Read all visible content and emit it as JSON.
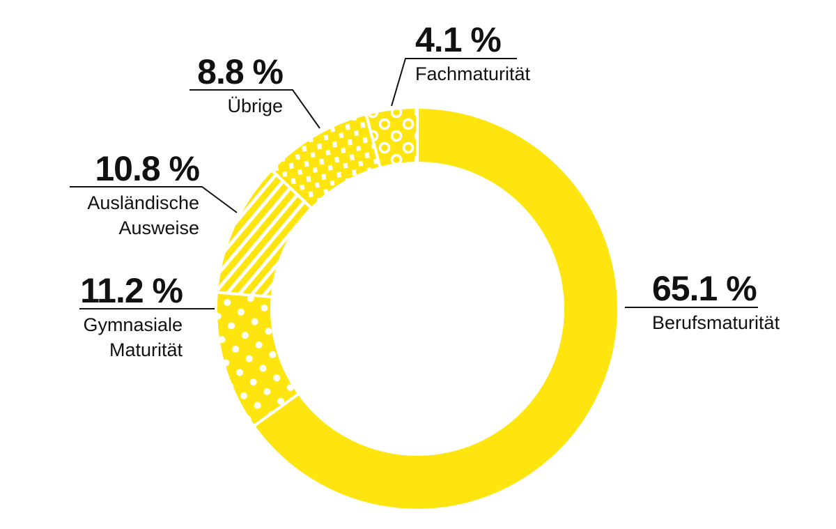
{
  "chart_data": {
    "type": "pie",
    "variant": "donut",
    "title": "",
    "start_angle_deg": 0,
    "direction": "clockwise",
    "colors": {
      "fill": "#FFE50F",
      "pattern": "#FFFFFF",
      "text": "#111111",
      "leader": "#111111"
    },
    "slices": [
      {
        "key": "berufsmaturitaet",
        "label": "Berufsmaturität",
        "value": 65.1,
        "value_label": "65.1 %",
        "pattern": "solid"
      },
      {
        "key": "gymnasiale",
        "label": "Gymnasiale Maturität",
        "lines": [
          "Gymnasiale",
          "Maturität"
        ],
        "value": 11.2,
        "value_label": "11.2 %",
        "pattern": "dots"
      },
      {
        "key": "auslaendische",
        "label": "Ausländische Ausweise",
        "lines": [
          "Ausländische",
          "Ausweise"
        ],
        "value": 10.8,
        "value_label": "10.8 %",
        "pattern": "diagonal-stripes"
      },
      {
        "key": "uebrige",
        "label": "Übrige",
        "value": 8.8,
        "value_label": "8.8 %",
        "pattern": "squares"
      },
      {
        "key": "fachmaturitaet",
        "label": "Fachmaturität",
        "value": 4.1,
        "value_label": "4.1 %",
        "pattern": "rings"
      }
    ]
  },
  "labels": {
    "berufs": {
      "pct": "65.1 %",
      "line1": "Berufsmaturität"
    },
    "gym": {
      "pct": "11.2 %",
      "line1": "Gymnasiale",
      "line2": "Maturität"
    },
    "ausl": {
      "pct": "10.8 %",
      "line1": "Ausländische",
      "line2": "Ausweise"
    },
    "uebrige": {
      "pct": "8.8 %",
      "line1": "Übrige"
    },
    "fach": {
      "pct": "4.1 %",
      "line1": "Fachmaturität"
    }
  }
}
